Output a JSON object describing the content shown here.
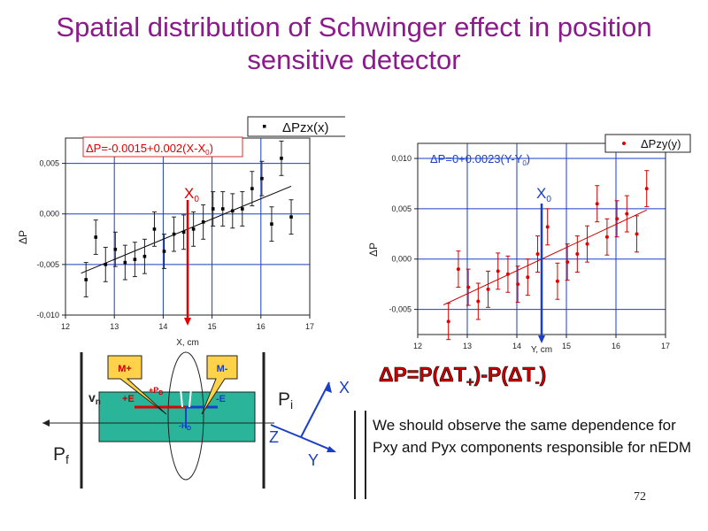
{
  "slide": {
    "title": "Spatial distribution of Schwinger effect in position sensitive detector",
    "slide_number": "72",
    "formula": {
      "lhs": "ΔP=P(ΔT",
      "plus": "+",
      "mid": ")-P(ΔT",
      "minus": "-",
      "rhs": ")"
    },
    "note": "We should observe the same dependence for Pxy and Pyx components responsible for nEDM"
  },
  "chart_data": [
    {
      "type": "scatter",
      "xlabel": "X, cm",
      "ylabel": "ΔP",
      "xlim": [
        12,
        17
      ],
      "ylim": [
        -0.01,
        0.0075
      ],
      "xticks": [
        "12",
        "13",
        "14",
        "15",
        "16",
        "17"
      ],
      "yticks": [
        "0,005",
        "0,000",
        "-0,005",
        "-0,010"
      ],
      "ytick_values": [
        0.005,
        0.0,
        -0.005,
        -0.01
      ],
      "grid": true,
      "legend": {
        "label": "ΔPzx(x)",
        "placement": "top-right"
      },
      "fit_label": {
        "main": "ΔP=-0.0015+0.002(X-X",
        "sub": "0",
        "end": ")"
      },
      "fit": {
        "intercept": -0.0015,
        "slope": 0.002,
        "x0": 14.5
      },
      "marker_label": {
        "main": "X",
        "sub": "0"
      },
      "marker_x": 14.5,
      "points": [
        {
          "x": 12.42,
          "y": -0.0065,
          "err": 0.0017
        },
        {
          "x": 12.62,
          "y": -0.0023,
          "err": 0.0017
        },
        {
          "x": 12.82,
          "y": -0.005,
          "err": 0.0017
        },
        {
          "x": 13.02,
          "y": -0.0035,
          "err": 0.0017
        },
        {
          "x": 13.22,
          "y": -0.0048,
          "err": 0.0017
        },
        {
          "x": 13.42,
          "y": -0.0045,
          "err": 0.0017
        },
        {
          "x": 13.62,
          "y": -0.0042,
          "err": 0.0017
        },
        {
          "x": 13.82,
          "y": -0.0015,
          "err": 0.0017
        },
        {
          "x": 14.02,
          "y": -0.0037,
          "err": 0.0017
        },
        {
          "x": 14.22,
          "y": -0.002,
          "err": 0.0017
        },
        {
          "x": 14.42,
          "y": -0.0018,
          "err": 0.0017
        },
        {
          "x": 14.62,
          "y": -0.0015,
          "err": 0.0017
        },
        {
          "x": 14.82,
          "y": -0.0008,
          "err": 0.0017
        },
        {
          "x": 15.02,
          "y": 0.0005,
          "err": 0.0017
        },
        {
          "x": 15.22,
          "y": 0.0005,
          "err": 0.0017
        },
        {
          "x": 15.42,
          "y": 0.0003,
          "err": 0.0017
        },
        {
          "x": 15.62,
          "y": 0.0005,
          "err": 0.0017
        },
        {
          "x": 15.82,
          "y": 0.0025,
          "err": 0.0017
        },
        {
          "x": 16.02,
          "y": 0.0035,
          "err": 0.0017
        },
        {
          "x": 16.22,
          "y": -0.001,
          "err": 0.0017
        },
        {
          "x": 16.42,
          "y": 0.0055,
          "err": 0.0017
        },
        {
          "x": 16.62,
          "y": -0.0003,
          "err": 0.0017
        }
      ]
    },
    {
      "type": "scatter",
      "xlabel": "Y, cm",
      "ylabel": "ΔP",
      "xlim": [
        12,
        17
      ],
      "ylim": [
        -0.0075,
        0.0115
      ],
      "xticks": [
        "12",
        "13",
        "14",
        "15",
        "16",
        "17"
      ],
      "yticks": [
        "0,010",
        "0,005",
        "0,000",
        "-0,005"
      ],
      "ytick_values": [
        0.01,
        0.005,
        0.0,
        -0.005
      ],
      "grid": true,
      "legend": {
        "label": "ΔPzy(y)",
        "placement": "top-right"
      },
      "fit_label": {
        "main": "ΔP=0+0.0023(Y-Y",
        "sub": "0",
        "end": ")"
      },
      "fit": {
        "intercept": 0.0,
        "slope": 0.0023,
        "x0": 14.5
      },
      "marker_label": {
        "main": "X",
        "sub": "0"
      },
      "marker_x": 14.5,
      "points": [
        {
          "x": 12.62,
          "y": -0.0062,
          "err": 0.0018
        },
        {
          "x": 12.82,
          "y": -0.001,
          "err": 0.0018
        },
        {
          "x": 13.02,
          "y": -0.0028,
          "err": 0.0018
        },
        {
          "x": 13.22,
          "y": -0.0042,
          "err": 0.0018
        },
        {
          "x": 13.42,
          "y": -0.003,
          "err": 0.0018
        },
        {
          "x": 13.62,
          "y": -0.0012,
          "err": 0.0018
        },
        {
          "x": 13.82,
          "y": -0.0015,
          "err": 0.0018
        },
        {
          "x": 14.02,
          "y": -0.0025,
          "err": 0.0018
        },
        {
          "x": 14.22,
          "y": -0.0018,
          "err": 0.0018
        },
        {
          "x": 14.42,
          "y": 0.0005,
          "err": 0.0018
        },
        {
          "x": 14.62,
          "y": 0.0032,
          "err": 0.0018
        },
        {
          "x": 14.82,
          "y": -0.0022,
          "err": 0.0018
        },
        {
          "x": 15.02,
          "y": -0.0003,
          "err": 0.0018
        },
        {
          "x": 15.22,
          "y": 0.0005,
          "err": 0.0018
        },
        {
          "x": 15.42,
          "y": 0.0015,
          "err": 0.0018
        },
        {
          "x": 15.62,
          "y": 0.0055,
          "err": 0.0018
        },
        {
          "x": 15.82,
          "y": 0.0022,
          "err": 0.0018
        },
        {
          "x": 16.02,
          "y": 0.004,
          "err": 0.0018
        },
        {
          "x": 16.22,
          "y": 0.0045,
          "err": 0.0018
        },
        {
          "x": 16.42,
          "y": 0.0025,
          "err": 0.0018
        },
        {
          "x": 16.62,
          "y": 0.007,
          "err": 0.0018
        }
      ]
    }
  ],
  "diagram": {
    "m_plus": "M+",
    "m_minus": "M-",
    "v_n": "v",
    "v_n_sub": "n",
    "e_plus": "+E",
    "e_minus": "-E",
    "p_d_plus": "+P",
    "p_d_plus_sub": "D",
    "p_d_minus": "-P",
    "p_d_minus_sub": "D",
    "p_i": "P",
    "p_i_sub": "i",
    "p_f": "P",
    "p_f_sub": "f",
    "axis_x": "X",
    "axis_y": "Y",
    "axis_z": "Z"
  }
}
